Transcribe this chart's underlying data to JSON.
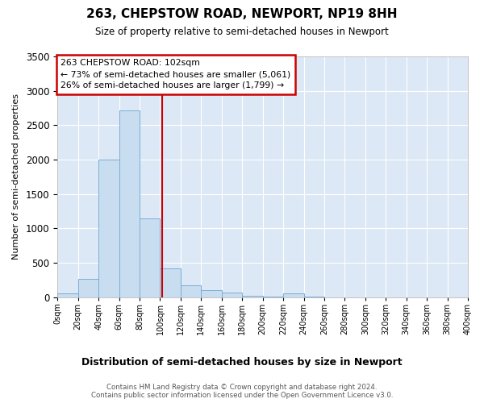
{
  "title_line1": "263, CHEPSTOW ROAD, NEWPORT, NP19 8HH",
  "title_line2": "Size of property relative to semi-detached houses in Newport",
  "xlabel": "Distribution of semi-detached houses by size in Newport",
  "ylabel": "Number of semi-detached properties",
  "footer_line1": "Contains HM Land Registry data © Crown copyright and database right 2024.",
  "footer_line2": "Contains public sector information licensed under the Open Government Licence v3.0.",
  "annotation_line1": "263 CHEPSTOW ROAD: 102sqm",
  "annotation_line2": "← 73% of semi-detached houses are smaller (5,061)",
  "annotation_line3": "26% of semi-detached houses are larger (1,799) →",
  "vline_x": 102,
  "bin_edges": [
    0,
    20,
    40,
    60,
    80,
    100,
    120,
    140,
    160,
    180,
    200,
    220,
    240,
    260,
    280,
    300,
    320,
    340,
    360,
    380,
    400
  ],
  "bar_heights": [
    50,
    270,
    2000,
    2720,
    1150,
    420,
    175,
    100,
    70,
    20,
    10,
    60,
    5,
    0,
    0,
    0,
    0,
    0,
    0,
    0
  ],
  "bar_color": "#c8ddf0",
  "bar_edge_color": "#7aaed6",
  "vline_color": "#cc0000",
  "annotation_border_color": "#cc0000",
  "plot_bg_color": "#dce8f5",
  "ylim": [
    0,
    3500
  ],
  "xlim": [
    0,
    400
  ],
  "yticks": [
    0,
    500,
    1000,
    1500,
    2000,
    2500,
    3000,
    3500
  ],
  "xtick_step": 20
}
